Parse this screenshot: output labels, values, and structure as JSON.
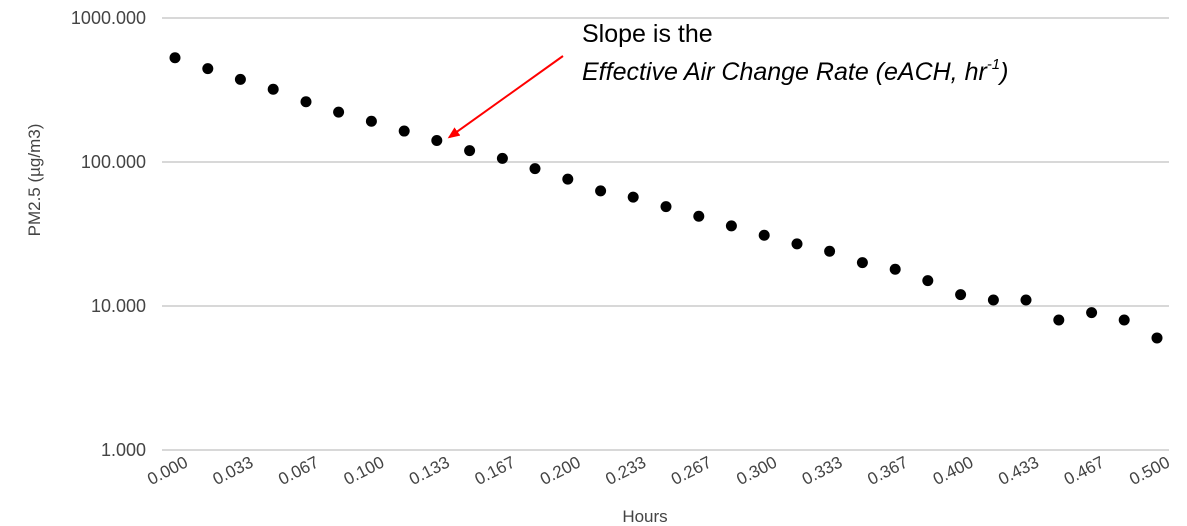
{
  "chart_data": {
    "type": "scatter",
    "xlabel": "Hours",
    "ylabel": "PM2.5 (µg/m3)",
    "y_scale": "log",
    "ylim": [
      1,
      1000
    ],
    "xlim": [
      0,
      0.5
    ],
    "y_ticks": [
      {
        "value": 1000,
        "label": "1000.000"
      },
      {
        "value": 100,
        "label": "100.000"
      },
      {
        "value": 10,
        "label": "10.000"
      },
      {
        "value": 1,
        "label": "1.000"
      }
    ],
    "x_ticks": [
      {
        "value": 0.0,
        "label": "0.000"
      },
      {
        "value": 0.0333,
        "label": "0.033"
      },
      {
        "value": 0.0667,
        "label": "0.067"
      },
      {
        "value": 0.1,
        "label": "0.100"
      },
      {
        "value": 0.1333,
        "label": "0.133"
      },
      {
        "value": 0.1667,
        "label": "0.167"
      },
      {
        "value": 0.2,
        "label": "0.200"
      },
      {
        "value": 0.2333,
        "label": "0.233"
      },
      {
        "value": 0.2667,
        "label": "0.267"
      },
      {
        "value": 0.3,
        "label": "0.300"
      },
      {
        "value": 0.3333,
        "label": "0.333"
      },
      {
        "value": 0.3667,
        "label": "0.367"
      },
      {
        "value": 0.4,
        "label": "0.400"
      },
      {
        "value": 0.4333,
        "label": "0.433"
      },
      {
        "value": 0.4667,
        "label": "0.467"
      },
      {
        "value": 0.5,
        "label": "0.500"
      }
    ],
    "grid": "horizontal",
    "marker_color": "#000000",
    "grid_color": "#cccccc",
    "points": [
      {
        "x": 0.0,
        "y": 530
      },
      {
        "x": 0.0167,
        "y": 445
      },
      {
        "x": 0.0333,
        "y": 375
      },
      {
        "x": 0.05,
        "y": 320
      },
      {
        "x": 0.0667,
        "y": 262
      },
      {
        "x": 0.0833,
        "y": 222
      },
      {
        "x": 0.1,
        "y": 192
      },
      {
        "x": 0.1167,
        "y": 164
      },
      {
        "x": 0.1333,
        "y": 141
      },
      {
        "x": 0.15,
        "y": 120
      },
      {
        "x": 0.1667,
        "y": 106
      },
      {
        "x": 0.1833,
        "y": 90
      },
      {
        "x": 0.2,
        "y": 76
      },
      {
        "x": 0.2167,
        "y": 63
      },
      {
        "x": 0.2333,
        "y": 57
      },
      {
        "x": 0.25,
        "y": 49
      },
      {
        "x": 0.2667,
        "y": 42
      },
      {
        "x": 0.2833,
        "y": 36
      },
      {
        "x": 0.3,
        "y": 31
      },
      {
        "x": 0.3167,
        "y": 27
      },
      {
        "x": 0.3333,
        "y": 24
      },
      {
        "x": 0.35,
        "y": 20
      },
      {
        "x": 0.3667,
        "y": 18
      },
      {
        "x": 0.3833,
        "y": 15
      },
      {
        "x": 0.4,
        "y": 12
      },
      {
        "x": 0.4167,
        "y": 11
      },
      {
        "x": 0.4333,
        "y": 11
      },
      {
        "x": 0.45,
        "y": 8
      },
      {
        "x": 0.4667,
        "y": 9
      },
      {
        "x": 0.4833,
        "y": 8
      },
      {
        "x": 0.5,
        "y": 6
      }
    ],
    "annotation": {
      "line1": "Slope is the",
      "line2": "Effective Air Change Rate (eACH, hr",
      "superscript": "-1",
      "closing": ")",
      "arrow_color": "#ff0000",
      "arrow_target": {
        "x": 0.1417,
        "y": 135
      }
    }
  }
}
